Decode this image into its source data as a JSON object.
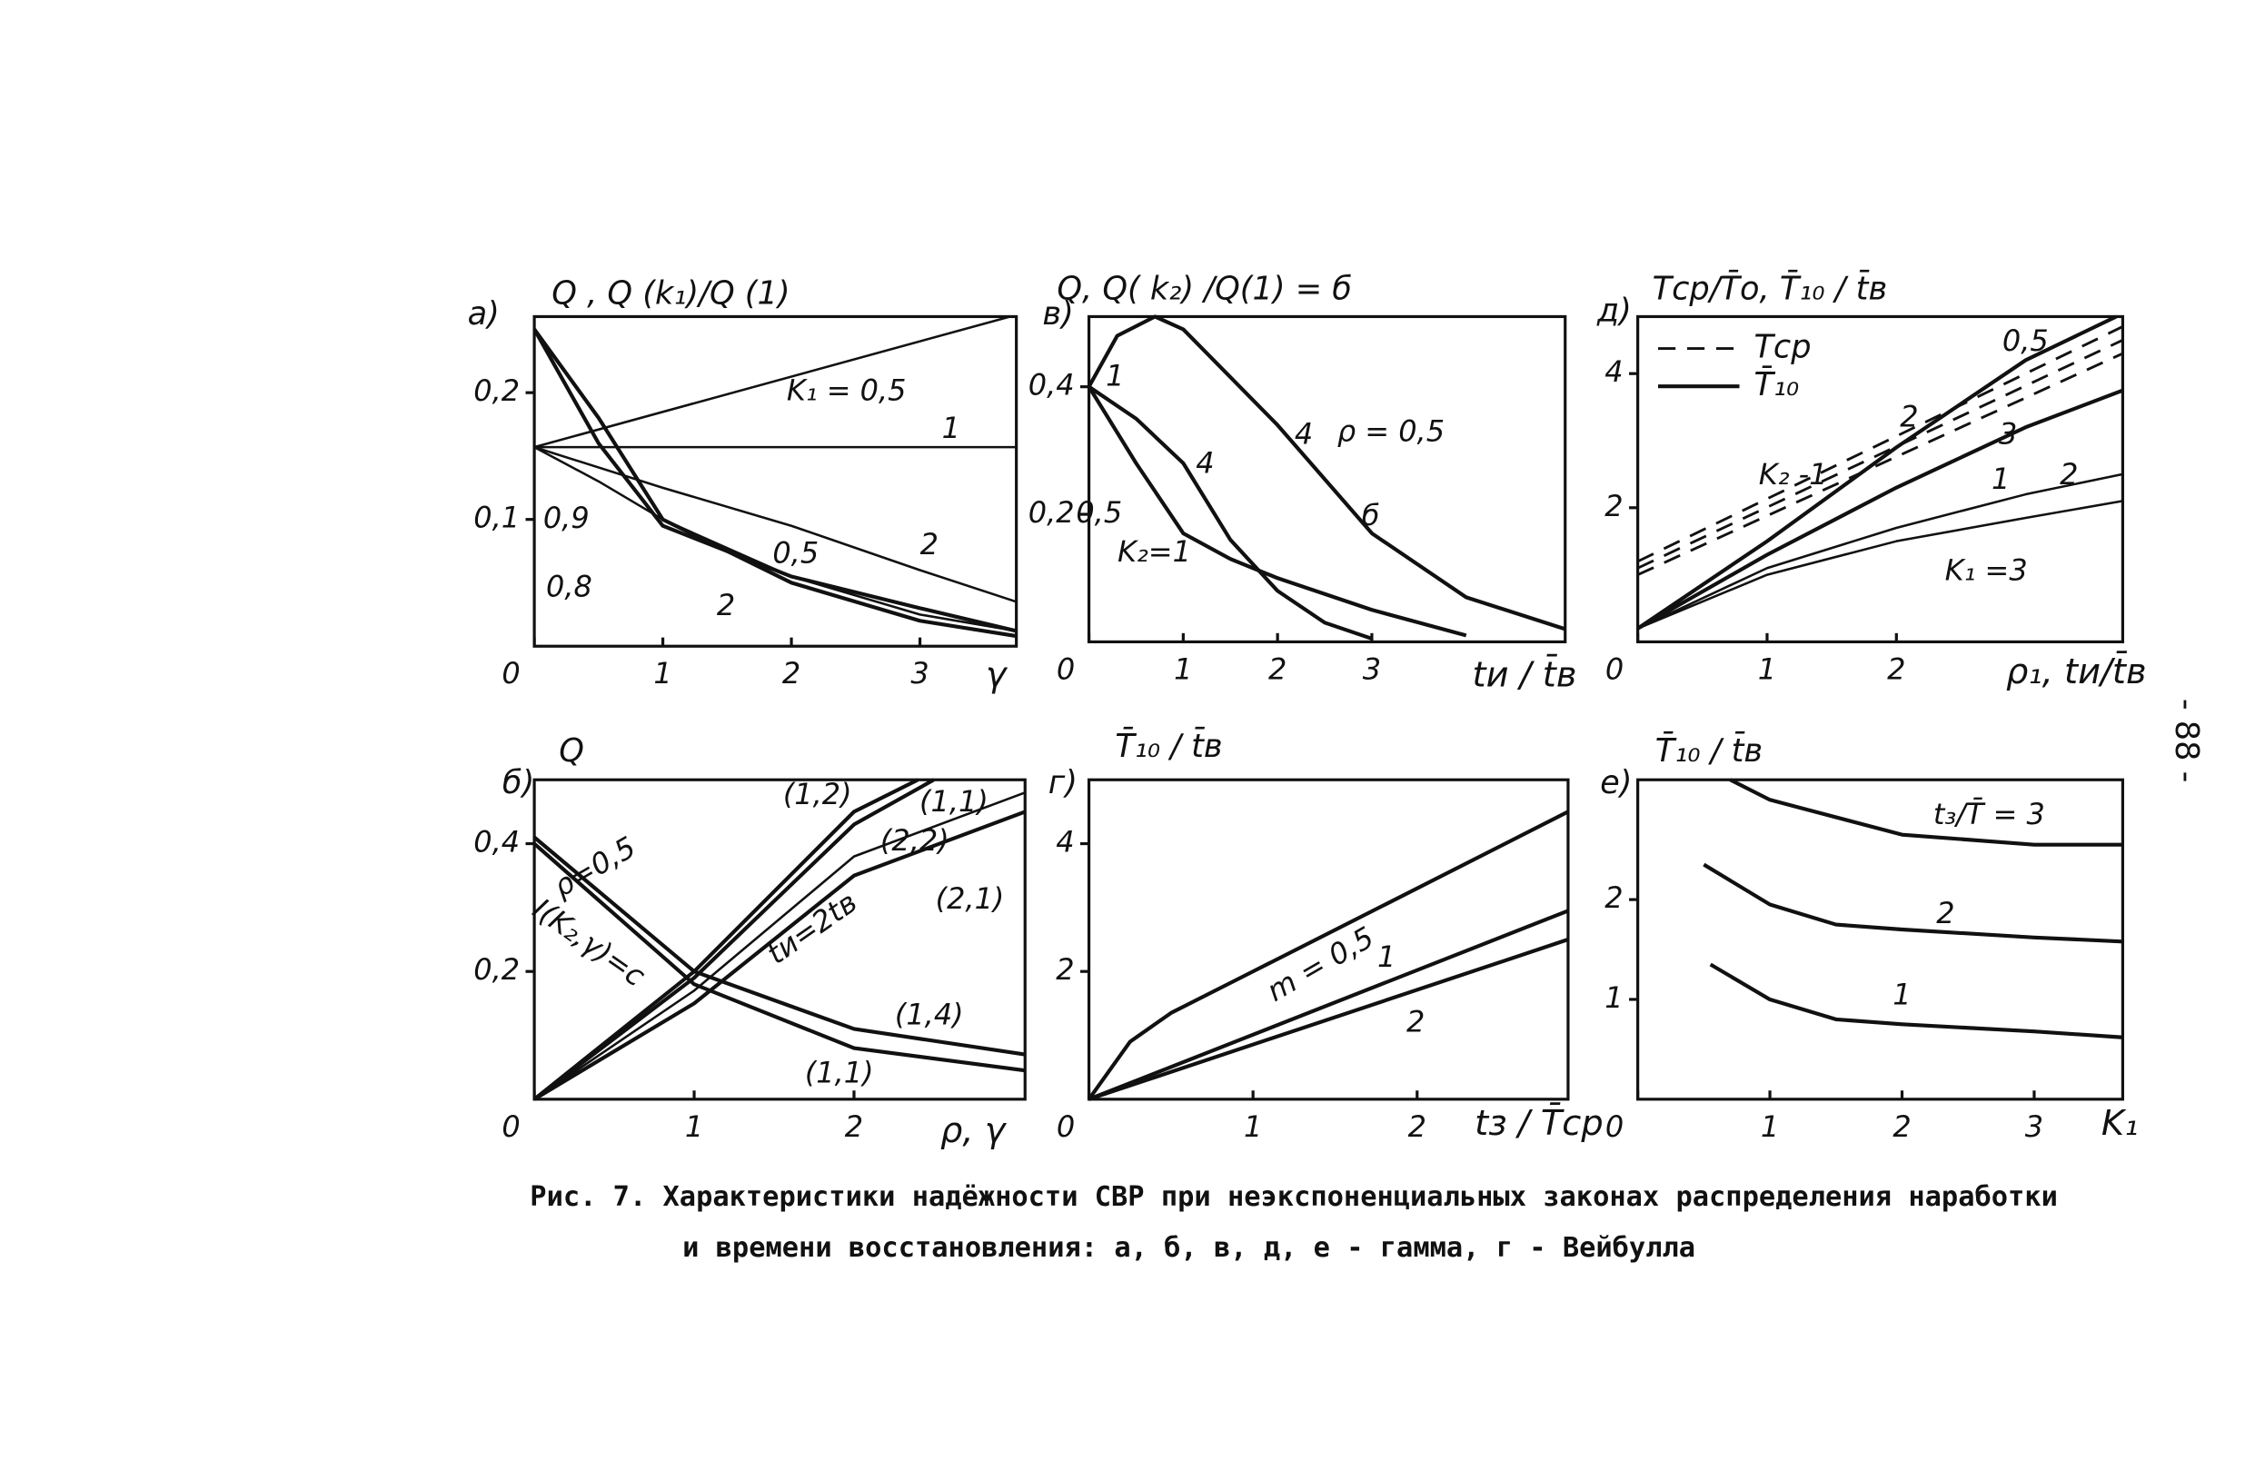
{
  "chart_data": [
    {
      "type": "line",
      "panel": "а)",
      "title": "Q , Q (k₁)/Q (1)",
      "xlabel": "γ",
      "xlim": [
        0,
        3.75
      ],
      "ylim": [
        0,
        0.26
      ],
      "xticks": [
        0,
        1,
        2,
        3
      ],
      "yticks": [
        {
          "value": 0.1,
          "label": "0,1"
        },
        {
          "value": 0.2,
          "label": "0,2"
        }
      ],
      "color": "#111",
      "series": [
        {
          "style": "thin",
          "x": [
            0,
            3.7
          ],
          "values": [
            0.157,
            0.26
          ]
        },
        {
          "style": "thin",
          "x": [
            0,
            3.75
          ],
          "values": [
            0.157,
            0.157
          ]
        },
        {
          "style": "thin",
          "x": [
            0,
            1,
            2,
            3,
            3.75
          ],
          "values": [
            0.157,
            0.125,
            0.095,
            0.06,
            0.035
          ]
        },
        {
          "style": "thin",
          "x": [
            0,
            0.5,
            1,
            2,
            3,
            3.75
          ],
          "values": [
            0.157,
            0.13,
            0.1,
            0.055,
            0.025,
            0.012
          ]
        },
        {
          "style": "solid",
          "x": [
            0,
            0.5,
            1,
            2,
            3,
            3.75
          ],
          "values": [
            0.25,
            0.16,
            0.095,
            0.055,
            0.03,
            0.012
          ]
        },
        {
          "style": "solid",
          "x": [
            0,
            0.5,
            1,
            2,
            3,
            3.75
          ],
          "values": [
            0.25,
            0.18,
            0.1,
            0.05,
            0.02,
            0.008
          ]
        }
      ],
      "annotations": [
        "K₁ = 0,5",
        "1",
        "2",
        "0,5",
        "2",
        "0,9",
        "0,8"
      ]
    },
    {
      "type": "line",
      "panel": "в)",
      "title": "Q, Q( k₂) /Q(1) = б",
      "xlabel": "tи / t̄в",
      "xlim": [
        0,
        5.05
      ],
      "ylim": [
        0,
        0.51
      ],
      "xticks": [
        0,
        1,
        2,
        3
      ],
      "yticks": [
        {
          "value": 0.2,
          "label": "0,2"
        },
        {
          "value": 0.4,
          "label": "0,4"
        }
      ],
      "color": "#111",
      "series": [
        {
          "style": "solid",
          "x": [
            0,
            0.3,
            0.7,
            1,
            2,
            3,
            4,
            5.05
          ],
          "values": [
            0.4,
            0.48,
            0.51,
            0.49,
            0.34,
            0.17,
            0.07,
            0.02
          ]
        },
        {
          "style": "solid",
          "x": [
            0,
            0.5,
            1,
            1.5,
            2,
            2.5,
            3
          ],
          "values": [
            0.4,
            0.35,
            0.28,
            0.16,
            0.08,
            0.03,
            0.005
          ]
        },
        {
          "style": "solid",
          "x": [
            0,
            0.5,
            1,
            1.5,
            2,
            3,
            4
          ],
          "values": [
            0.4,
            0.28,
            0.17,
            0.13,
            0.1,
            0.05,
            0.01
          ]
        }
      ],
      "annotations": [
        "1",
        "4",
        "4",
        "ρ = 0,5",
        "б",
        "0,5",
        "K₂=1"
      ]
    },
    {
      "type": "line",
      "panel": "д)",
      "title": "Tср/T̄о, T̄₁₀ / t̄в",
      "xlabel": "ρ₁, tи/t̄в",
      "xlim": [
        0,
        3.75
      ],
      "ylim": [
        0,
        4.85
      ],
      "xticks": [
        0,
        1,
        2
      ],
      "yticks": [
        2,
        4
      ],
      "color": "#111",
      "legend": [
        {
          "name": "Tср",
          "style": "dashed"
        },
        {
          "name": "T̄₁₀",
          "style": "solid"
        }
      ],
      "series": [
        {
          "style": "dashed",
          "x": [
            0,
            3.75
          ],
          "values": [
            1.2,
            4.7
          ]
        },
        {
          "style": "dashed",
          "x": [
            0,
            3.75
          ],
          "values": [
            1.1,
            4.5
          ]
        },
        {
          "style": "dashed",
          "x": [
            0,
            3.75
          ],
          "values": [
            1.0,
            4.3
          ]
        },
        {
          "style": "solid",
          "x": [
            0,
            1,
            2,
            3,
            3.7
          ],
          "values": [
            0.2,
            1.5,
            2.9,
            4.2,
            4.85
          ]
        },
        {
          "style": "solid",
          "x": [
            0,
            1,
            2,
            3,
            3.75
          ],
          "values": [
            0.2,
            1.3,
            2.3,
            3.2,
            3.75
          ]
        },
        {
          "style": "thin",
          "x": [
            0,
            1,
            2,
            3,
            3.75
          ],
          "values": [
            0.2,
            1.1,
            1.7,
            2.2,
            2.5
          ]
        },
        {
          "style": "thin",
          "x": [
            0,
            1,
            2,
            3,
            3.75
          ],
          "values": [
            0.2,
            1.0,
            1.5,
            1.85,
            2.1
          ]
        }
      ],
      "annotations": [
        "0,5",
        "2",
        "3",
        "1",
        "2",
        "K₂ -1",
        "K₁ =3"
      ]
    },
    {
      "type": "line",
      "panel": "б)",
      "title": "Q",
      "xlabel": "ρ, γ",
      "xlim": [
        0,
        3.07
      ],
      "ylim": [
        0,
        0.5
      ],
      "xticks": [
        0,
        1,
        2
      ],
      "yticks": [
        {
          "value": 0.2,
          "label": "0,2"
        },
        {
          "value": 0.4,
          "label": "0,4"
        }
      ],
      "color": "#111",
      "series": [
        {
          "style": "solid",
          "x": [
            0,
            1,
            2,
            2.4
          ],
          "values": [
            0,
            0.2,
            0.45,
            0.5
          ]
        },
        {
          "style": "solid",
          "x": [
            0,
            1,
            2,
            2.5
          ],
          "values": [
            0,
            0.19,
            0.43,
            0.5
          ]
        },
        {
          "style": "thin",
          "x": [
            0,
            1,
            2,
            3.07
          ],
          "values": [
            0,
            0.17,
            0.38,
            0.48
          ]
        },
        {
          "style": "solid",
          "x": [
            0,
            1,
            2,
            3.07
          ],
          "values": [
            0,
            0.15,
            0.35,
            0.45
          ]
        },
        {
          "style": "solid",
          "x": [
            0,
            1,
            2,
            3.07
          ],
          "values": [
            0.41,
            0.2,
            0.11,
            0.07
          ]
        },
        {
          "style": "solid",
          "x": [
            0,
            1,
            2,
            3.07
          ],
          "values": [
            0.4,
            0.18,
            0.08,
            0.045
          ]
        }
      ],
      "annotations": [
        "(1,2)",
        "(1,1)",
        "(2,2)",
        "(2,1)",
        "ρ=0,5",
        "I(K₂,γ)=c",
        "tи=2t̄в",
        "(1,4)",
        "(1,1)"
      ]
    },
    {
      "type": "line",
      "panel": "г)",
      "title": "T̄₁₀ / t̄в",
      "xlabel": "tз / T̄ср",
      "xlim": [
        0,
        2.92
      ],
      "ylim": [
        0,
        5
      ],
      "xticks": [
        0,
        1,
        2
      ],
      "yticks": [
        2,
        4
      ],
      "color": "#111",
      "series": [
        {
          "style": "solid",
          "x": [
            0,
            0.25,
            0.5,
            1,
            2,
            2.92
          ],
          "values": [
            0,
            0.9,
            1.35,
            2,
            3.3,
            4.5
          ]
        },
        {
          "style": "solid",
          "x": [
            0,
            2.92
          ],
          "values": [
            0,
            2.95
          ]
        },
        {
          "style": "solid",
          "x": [
            0,
            2.92
          ],
          "values": [
            0,
            2.5
          ]
        }
      ],
      "annotations": [
        "m = 0,5",
        "1",
        "2"
      ]
    },
    {
      "type": "line",
      "panel": "е)",
      "title": "T̄₁₀ / t̄в",
      "xlabel": "K₁",
      "xlim": [
        0,
        3.67
      ],
      "ylim": [
        0,
        3.2
      ],
      "xticks": [
        0,
        1,
        2,
        3
      ],
      "yticks": [
        1,
        2
      ],
      "color": "#111",
      "series": [
        {
          "style": "solid",
          "x": [
            0.7,
            1,
            2,
            3,
            3.67
          ],
          "values": [
            3.2,
            3.0,
            2.65,
            2.55,
            2.55
          ]
        },
        {
          "style": "solid",
          "x": [
            0.5,
            1,
            1.5,
            2,
            3,
            3.67
          ],
          "values": [
            2.35,
            1.95,
            1.75,
            1.7,
            1.62,
            1.58
          ]
        },
        {
          "style": "solid",
          "x": [
            0.55,
            1,
            1.5,
            2,
            3,
            3.67
          ],
          "values": [
            1.35,
            1.0,
            0.8,
            0.75,
            0.68,
            0.62
          ]
        }
      ],
      "annotations": [
        "t₃/T̄ = 3",
        "2",
        "1"
      ]
    }
  ],
  "caption": [
    "Рис. 7.  Характеристики надёжности СВР при неэкспоненциальных законах распределения наработки",
    "и времени восстановления: а, б, в, д, е - гамма, г - Вейбулла"
  ],
  "page_number": "- 88 -"
}
